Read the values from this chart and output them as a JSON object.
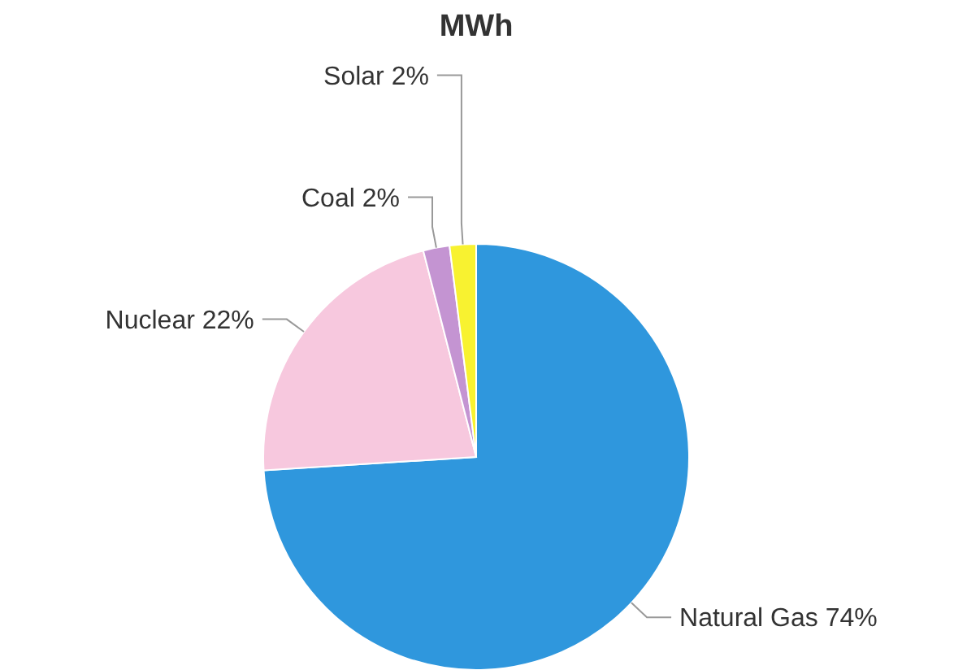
{
  "chart_data": {
    "type": "pie",
    "title": "MWh",
    "categories": [
      "Natural Gas",
      "Nuclear",
      "Coal",
      "Solar"
    ],
    "values": [
      74,
      22,
      2,
      2
    ],
    "value_labels": [
      "74%",
      "22%",
      "2%",
      "2%"
    ],
    "colors": [
      "#2f97dd",
      "#f7c8de",
      "#c494d2",
      "#f8f230"
    ]
  }
}
